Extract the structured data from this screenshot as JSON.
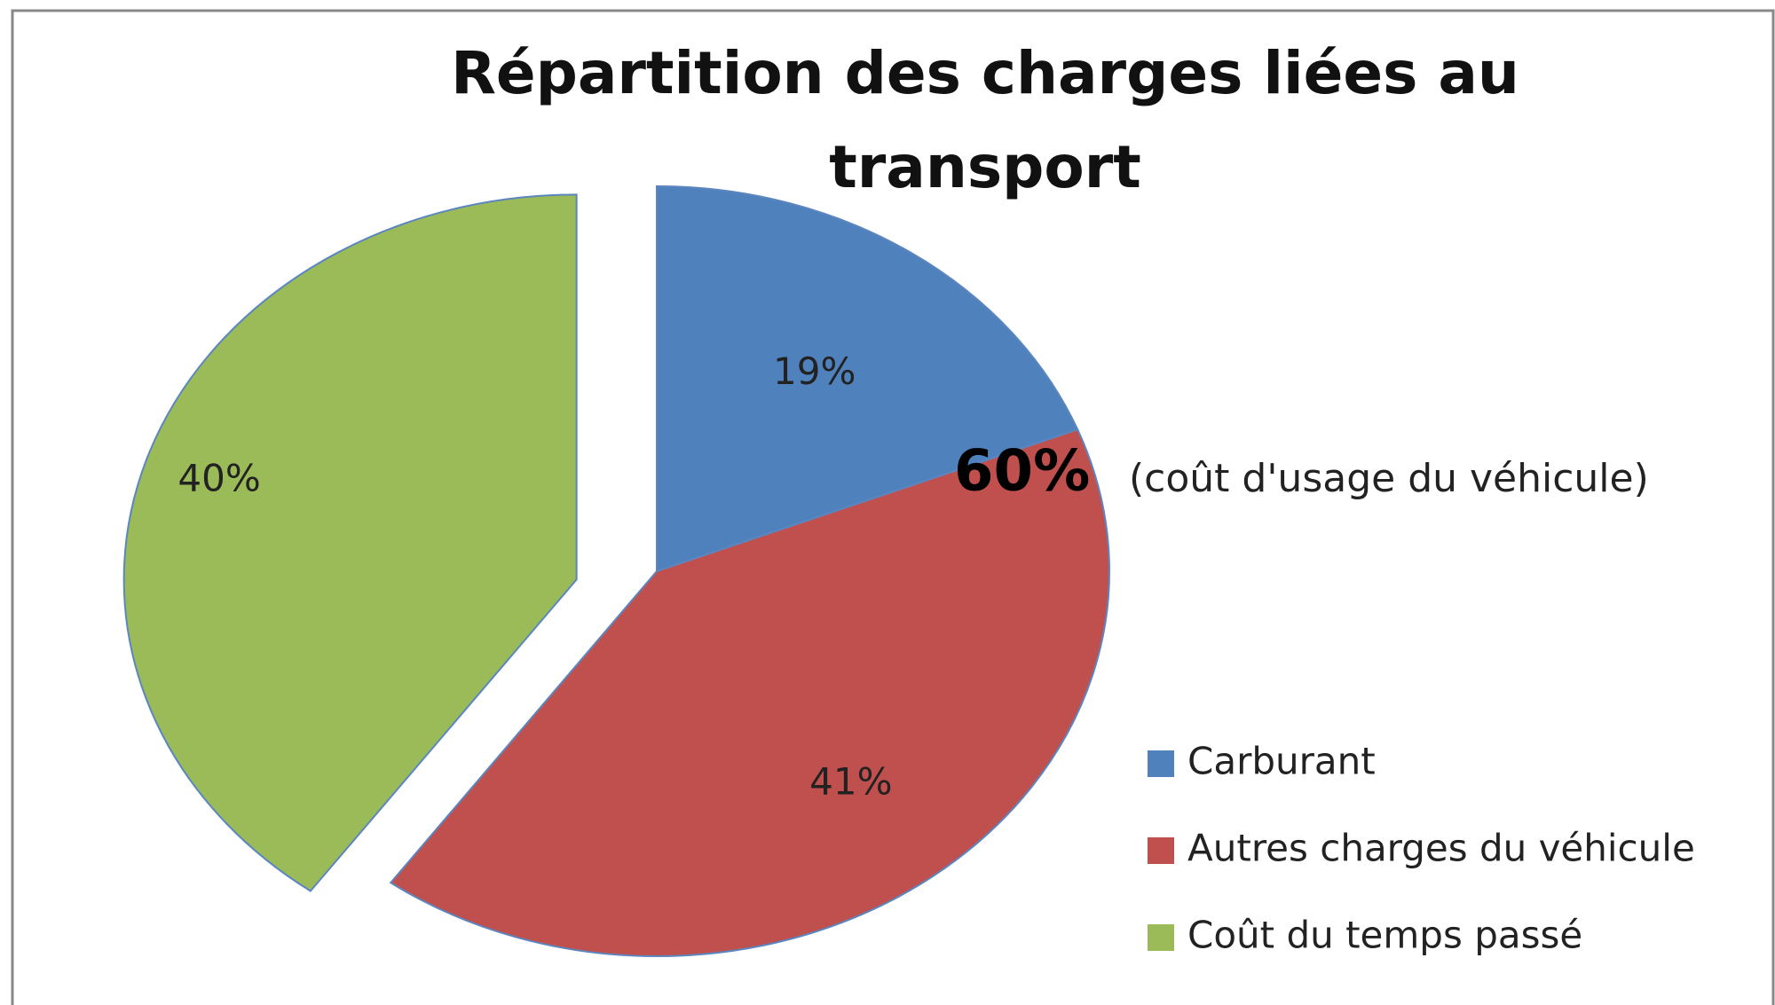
{
  "chart_data": {
    "type": "pie",
    "title": "Répartition des charges liées au transport",
    "categories": [
      "Carburant",
      "Autres charges du véhicule",
      "Coût du temps passé"
    ],
    "values": [
      19,
      41,
      40
    ],
    "value_labels": [
      "19%",
      "41%",
      "40%"
    ],
    "colors": [
      "#4f81bd",
      "#c0504d",
      "#9bbb59"
    ],
    "exploded": [
      false,
      false,
      true
    ],
    "legend": "right",
    "annotations": [
      {
        "text": "60%"
      },
      {
        "text": "(coût d'usage du véhicule)"
      }
    ]
  }
}
